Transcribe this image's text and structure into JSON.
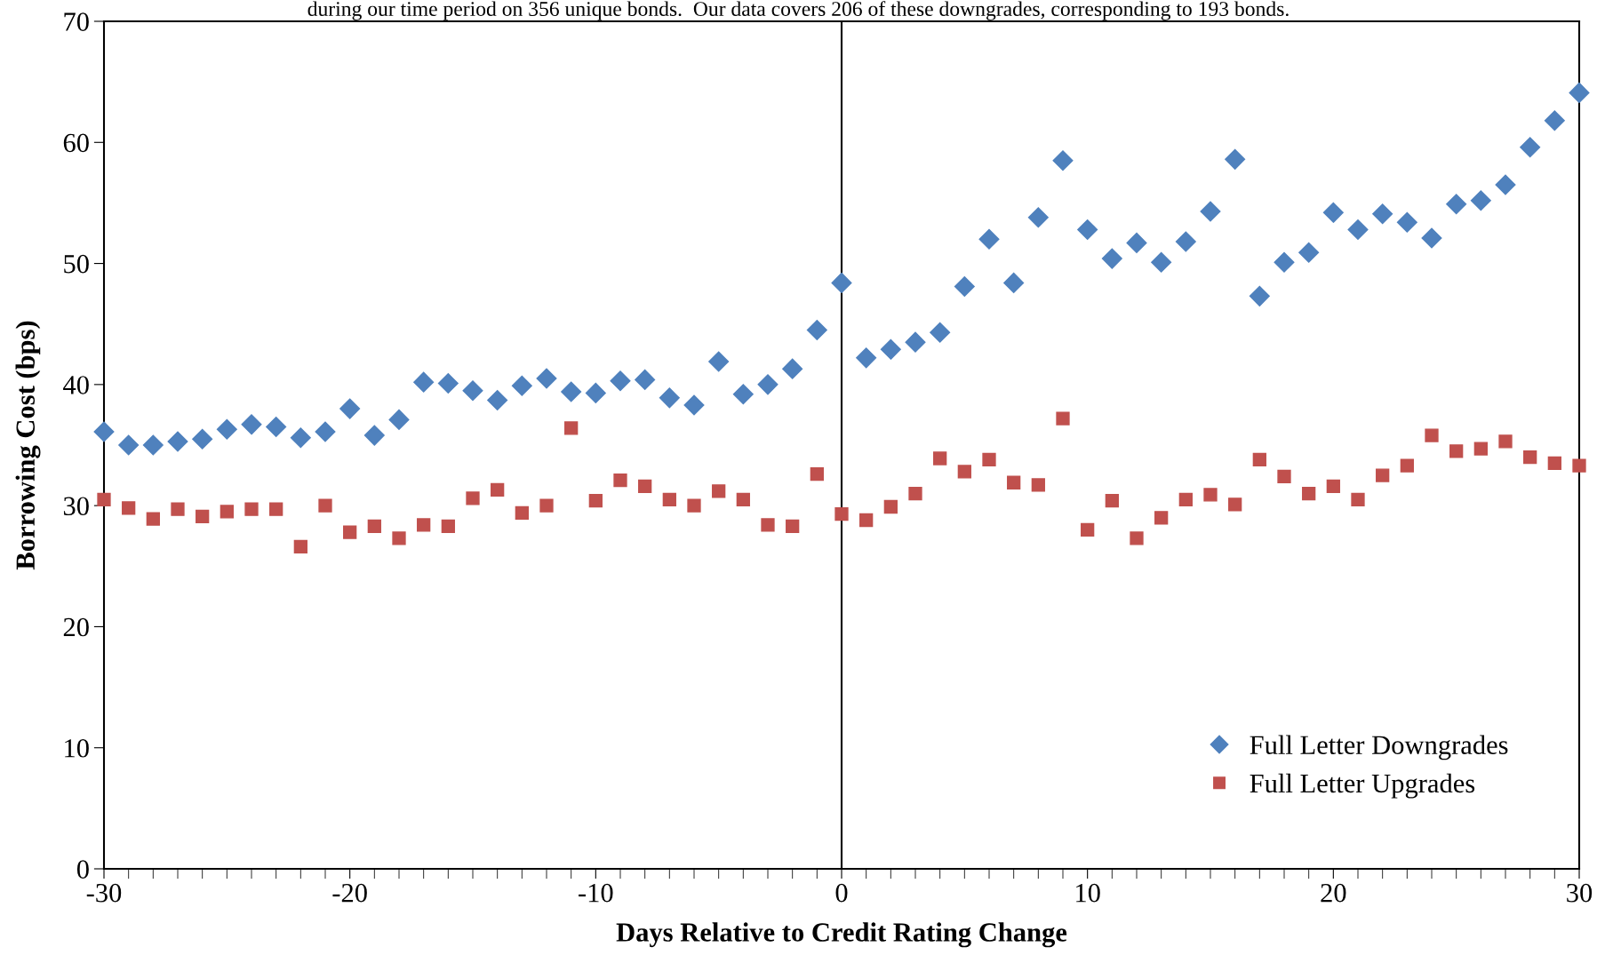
{
  "chart_data": {
    "type": "scatter",
    "annotations": [
      "during our time period on 356 unique bonds.  Our data covers 206 of these downgrades, corresponding to 193 bonds."
    ],
    "xlabel": "Days Relative to Credit Rating Change",
    "ylabel": "Borrowing Cost (bps)",
    "x": [
      -30,
      -29,
      -28,
      -27,
      -26,
      -25,
      -24,
      -23,
      -22,
      -21,
      -20,
      -19,
      -18,
      -17,
      -16,
      -15,
      -14,
      -13,
      -12,
      -11,
      -10,
      -9,
      -8,
      -7,
      -6,
      -5,
      -4,
      -3,
      -2,
      -1,
      0,
      1,
      2,
      3,
      4,
      5,
      6,
      7,
      8,
      9,
      10,
      11,
      12,
      13,
      14,
      15,
      16,
      17,
      18,
      19,
      20,
      21,
      22,
      23,
      24,
      25,
      26,
      27,
      28,
      29,
      30
    ],
    "series": [
      {
        "name": "Full Letter Downgrades",
        "color": "#4f81bd",
        "marker": "diamond",
        "values": [
          36.1,
          35.0,
          35.0,
          35.3,
          35.5,
          36.3,
          36.7,
          36.5,
          35.6,
          36.1,
          38.0,
          35.8,
          37.1,
          40.2,
          40.1,
          39.5,
          38.7,
          39.9,
          40.5,
          39.4,
          39.3,
          40.3,
          40.4,
          38.9,
          38.3,
          41.9,
          39.2,
          40.0,
          41.3,
          44.5,
          48.4,
          42.2,
          42.9,
          43.5,
          44.3,
          48.1,
          52.0,
          48.4,
          53.8,
          58.5,
          52.8,
          50.4,
          51.7,
          50.1,
          51.8,
          54.3,
          58.6,
          47.3,
          50.1,
          50.9,
          54.2,
          52.8,
          54.1,
          53.4,
          52.1,
          54.9,
          55.2,
          56.5,
          59.6,
          61.8,
          64.1
        ]
      },
      {
        "name": "Full Letter Upgrades",
        "color": "#c0504d",
        "marker": "square",
        "values": [
          30.5,
          29.8,
          28.9,
          29.7,
          29.1,
          29.5,
          29.7,
          29.7,
          26.6,
          30.0,
          27.8,
          28.3,
          27.3,
          28.4,
          28.3,
          30.6,
          31.3,
          29.4,
          30.0,
          36.4,
          30.4,
          32.1,
          31.6,
          30.5,
          30.0,
          31.2,
          30.5,
          28.4,
          28.3,
          32.6,
          29.3,
          28.8,
          29.9,
          31.0,
          33.9,
          32.8,
          33.8,
          31.9,
          31.7,
          37.2,
          28.0,
          30.4,
          27.3,
          29.0,
          30.5,
          30.9,
          30.1,
          33.8,
          32.4,
          31.0,
          31.6,
          30.5,
          32.5,
          33.3,
          35.8,
          34.5,
          34.7,
          35.3,
          34.0,
          33.5,
          33.3
        ]
      }
    ],
    "xlim": [
      -30,
      30
    ],
    "xticks": [
      -30,
      -20,
      -10,
      0,
      10,
      20,
      30
    ],
    "ylim": [
      0,
      70
    ],
    "yticks": [
      0,
      10,
      20,
      30,
      40,
      50,
      60,
      70
    ],
    "ref_lines": [
      {
        "axis": "x",
        "value": 0,
        "color": "#000000"
      }
    ],
    "grid": false,
    "legend": "bottom right"
  }
}
